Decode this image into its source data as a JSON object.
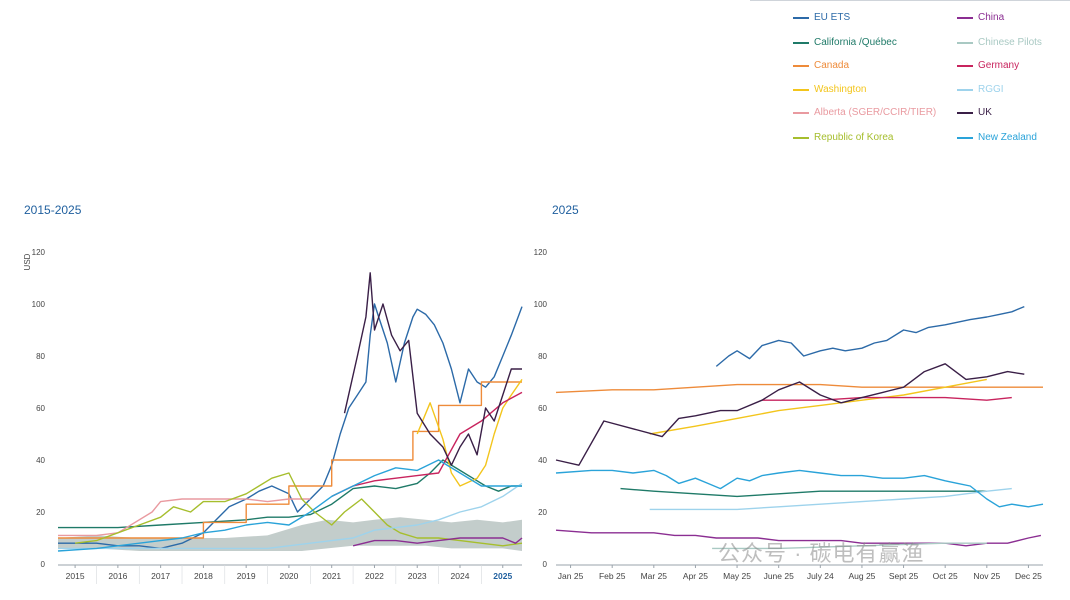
{
  "legend": [
    {
      "name": "EU ETS",
      "color": "#2c6aa8",
      "col": 0
    },
    {
      "name": "California /Québec",
      "color": "#1f7a68",
      "col": 0
    },
    {
      "name": "Canada",
      "color": "#ee8b3a",
      "col": 0
    },
    {
      "name": "Washington",
      "color": "#f3c51c",
      "col": 0
    },
    {
      "name": "Alberta (SGER/CCIR/TIER)",
      "color": "#e99aa0",
      "col": 0
    },
    {
      "name": "Republic of Korea",
      "color": "#a6be2d",
      "col": 0
    },
    {
      "name": "China",
      "color": "#8b2e92",
      "col": 1
    },
    {
      "name": "Chinese Pilots",
      "color": "#a9c9c3",
      "col": 1
    },
    {
      "name": "Germany",
      "color": "#c8245e",
      "col": 1
    },
    {
      "name": "RGGI",
      "color": "#9ed3ec",
      "col": 1
    },
    {
      "name": "UK",
      "color": "#3a1f47",
      "col": 1
    },
    {
      "name": "New Zealand",
      "color": "#2aa3d9",
      "col": 1
    }
  ],
  "watermark": "公众号 · 碳电有赢渔",
  "chart_data": [
    {
      "type": "line",
      "title": "2015-2025",
      "ylabel": "USD",
      "ylim": [
        0,
        120
      ],
      "yticks": [
        0,
        20,
        40,
        60,
        80,
        100,
        120
      ],
      "xlim": [
        2014.6,
        2025.45
      ],
      "xtick_labels": [
        "2015",
        "2016",
        "2017",
        "2018",
        "2019",
        "2020",
        "2021",
        "2022",
        "2023",
        "2024",
        "2025"
      ],
      "xtick_pos": [
        2015,
        2016,
        2017,
        2018,
        2019,
        2020,
        2021,
        2022,
        2023,
        2024,
        2025
      ],
      "highlight_tick": "2025",
      "band": {
        "name": "Chinese Pilots",
        "color": "#b8c4c2",
        "x": [
          2014.6,
          2015.5,
          2016.5,
          2017.5,
          2018.5,
          2019.5,
          2020.3,
          2020.9,
          2021.5,
          2022.0,
          2022.6,
          2023.2,
          2023.8,
          2024.4,
          2025.0,
          2025.45
        ],
        "lower": [
          6,
          6,
          5,
          5,
          5,
          5,
          5,
          6,
          7,
          7,
          7,
          7,
          6,
          6,
          6,
          5
        ],
        "upper": [
          10,
          11,
          10,
          10,
          10,
          11,
          15,
          17,
          16,
          17,
          18,
          17,
          16,
          17,
          16,
          17
        ]
      },
      "series": [
        {
          "name": "EU ETS",
          "color": "#2c6aa8",
          "x": [
            2014.6,
            2015,
            2015.5,
            2016,
            2016.5,
            2017,
            2017.5,
            2018,
            2018.3,
            2018.6,
            2019,
            2019.3,
            2019.6,
            2020,
            2020.2,
            2020.5,
            2020.8,
            2021,
            2021.2,
            2021.4,
            2021.6,
            2021.8,
            2021.9,
            2022,
            2022.1,
            2022.2,
            2022.3,
            2022.5,
            2022.7,
            2022.9,
            2023,
            2023.2,
            2023.4,
            2023.6,
            2023.8,
            2024,
            2024.2,
            2024.4,
            2024.6,
            2024.8,
            2025,
            2025.2,
            2025.45
          ],
          "y": [
            8,
            8,
            8,
            7,
            7,
            6,
            8,
            12,
            17,
            22,
            25,
            28,
            30,
            27,
            20,
            25,
            30,
            38,
            50,
            60,
            65,
            70,
            88,
            100,
            95,
            90,
            85,
            70,
            85,
            95,
            98,
            96,
            92,
            85,
            75,
            62,
            75,
            70,
            68,
            72,
            80,
            88,
            99
          ]
        },
        {
          "name": "California /Québec",
          "color": "#1f7a68",
          "x": [
            2014.6,
            2015,
            2016,
            2017,
            2018,
            2019,
            2019.5,
            2020,
            2020.5,
            2021,
            2021.5,
            2022,
            2022.5,
            2023,
            2023.3,
            2023.6,
            2024,
            2024.3,
            2024.6,
            2024.9,
            2025.2,
            2025.45
          ],
          "y": [
            14,
            14,
            14,
            15,
            16,
            17,
            18,
            18,
            19,
            23,
            29,
            30,
            29,
            31,
            35,
            40,
            36,
            33,
            30,
            28,
            30,
            30
          ]
        },
        {
          "name": "Canada",
          "color": "#ee8b3a",
          "x": [
            2014.6,
            2016,
            2017,
            2018,
            2018,
            2019,
            2019,
            2020,
            2020,
            2021,
            2021,
            2022,
            2022,
            2022.9,
            2022.9,
            2023.5,
            2023.5,
            2024.5,
            2024.5,
            2025.45
          ],
          "y": [
            10,
            10,
            10,
            10,
            16,
            16,
            23,
            23,
            30,
            30,
            40,
            40,
            40,
            40,
            51,
            51,
            61,
            61,
            70,
            70
          ]
        },
        {
          "name": "Washington",
          "color": "#f3c51c",
          "x": [
            2023,
            2023.3,
            2023.6,
            2023.8,
            2024,
            2024.4,
            2024.6,
            2024.8,
            2025,
            2025.2,
            2025.45
          ],
          "y": [
            50,
            62,
            48,
            35,
            30,
            33,
            38,
            50,
            60,
            65,
            71
          ]
        },
        {
          "name": "Alberta (SGER/CCIR/TIER)",
          "color": "#e99aa0",
          "x": [
            2014.6,
            2015.5,
            2016,
            2016.8,
            2017,
            2017.5,
            2018,
            2018.5,
            2019,
            2019.5,
            2020,
            2020.5
          ],
          "y": [
            11,
            11,
            12,
            20,
            24,
            25,
            25,
            25,
            25,
            24,
            25,
            25
          ]
        },
        {
          "name": "Republic of Korea",
          "color": "#a6be2d",
          "x": [
            2015,
            2015.5,
            2016,
            2016.5,
            2017,
            2017.3,
            2017.7,
            2018,
            2018.5,
            2019,
            2019.3,
            2019.6,
            2020,
            2020.3,
            2020.6,
            2021,
            2021.3,
            2021.7,
            2022,
            2022.3,
            2022.6,
            2023,
            2023.5,
            2024,
            2024.5,
            2025,
            2025.45
          ],
          "y": [
            8,
            9,
            12,
            15,
            18,
            22,
            20,
            24,
            24,
            27,
            30,
            33,
            35,
            25,
            20,
            15,
            20,
            25,
            20,
            15,
            12,
            10,
            10,
            9,
            8,
            7,
            8
          ]
        },
        {
          "name": "China",
          "color": "#8b2e92",
          "x": [
            2021.5,
            2022,
            2022.5,
            2023,
            2023.5,
            2024,
            2024.5,
            2025,
            2025.3,
            2025.45
          ],
          "y": [
            7,
            9,
            9,
            8,
            9,
            10,
            10,
            10,
            8,
            10
          ]
        },
        {
          "name": "Germany",
          "color": "#c8245e",
          "x": [
            2021,
            2021.5,
            2022,
            2022.5,
            2023,
            2023.5,
            2024,
            2024.5,
            2025,
            2025.45
          ],
          "y": [
            26,
            30,
            32,
            33,
            34,
            35,
            50,
            55,
            62,
            66
          ]
        },
        {
          "name": "RGGI",
          "color": "#9ed3ec",
          "x": [
            2014.6,
            2015.5,
            2016.5,
            2017.5,
            2018.5,
            2019.5,
            2020.5,
            2021,
            2021.5,
            2022,
            2022.5,
            2023,
            2023.5,
            2024,
            2024.5,
            2025,
            2025.45
          ],
          "y": [
            6,
            6,
            6,
            6,
            6,
            6,
            8,
            9,
            10,
            13,
            14,
            15,
            17,
            20,
            22,
            26,
            31
          ]
        },
        {
          "name": "UK",
          "color": "#3a1f47",
          "x": [
            2021.3,
            2021.6,
            2021.8,
            2021.9,
            2022,
            2022.2,
            2022.4,
            2022.6,
            2022.8,
            2023,
            2023.3,
            2023.6,
            2023.8,
            2024,
            2024.2,
            2024.4,
            2024.6,
            2024.8,
            2025,
            2025.2,
            2025.45
          ],
          "y": [
            58,
            80,
            95,
            112,
            90,
            100,
            88,
            82,
            86,
            58,
            50,
            45,
            38,
            45,
            50,
            42,
            60,
            55,
            65,
            75,
            75
          ]
        },
        {
          "name": "New Zealand",
          "color": "#2aa3d9",
          "x": [
            2014.6,
            2015.5,
            2016,
            2016.5,
            2017,
            2017.5,
            2018,
            2018.5,
            2019,
            2019.5,
            2020,
            2020.5,
            2021,
            2021.5,
            2022,
            2022.5,
            2023,
            2023.5,
            2024,
            2024.5,
            2025,
            2025.45
          ],
          "y": [
            5,
            6,
            7,
            8,
            9,
            10,
            12,
            13,
            15,
            16,
            15,
            20,
            26,
            30,
            34,
            37,
            36,
            40,
            35,
            30,
            30,
            30
          ]
        }
      ]
    },
    {
      "type": "line",
      "title": "2025",
      "ylim": [
        0,
        120
      ],
      "yticks": [
        0,
        20,
        40,
        60,
        80,
        100,
        120
      ],
      "xlim": [
        -0.35,
        11.35
      ],
      "xtick_labels": [
        "Jan 25",
        "Feb 25",
        "Mar 25",
        "Apr 25",
        "May 25",
        "June 25",
        "July 24",
        "Aug 25",
        "Sept 25",
        "Oct 25",
        "Nov 25",
        "Dec 25"
      ],
      "xtick_pos": [
        0,
        1,
        2,
        3,
        4,
        5,
        6,
        7,
        8,
        9,
        10,
        11
      ],
      "series": [
        {
          "name": "EU ETS",
          "color": "#2c6aa8",
          "x": [
            3.5,
            3.8,
            4,
            4.3,
            4.6,
            5,
            5.3,
            5.6,
            6,
            6.3,
            6.6,
            7,
            7.3,
            7.6,
            8,
            8.3,
            8.6,
            9,
            9.3,
            9.6,
            10,
            10.3,
            10.6,
            10.9
          ],
          "y": [
            76,
            80,
            82,
            79,
            84,
            86,
            85,
            80,
            82,
            83,
            82,
            83,
            85,
            86,
            90,
            89,
            91,
            92,
            93,
            94,
            95,
            96,
            97,
            99
          ]
        },
        {
          "name": "California /Québec",
          "color": "#1f7a68",
          "x": [
            1.2,
            2,
            3,
            4,
            5,
            6,
            7,
            8,
            9,
            10
          ],
          "y": [
            29,
            28,
            27,
            26,
            27,
            28,
            28,
            28,
            28,
            28
          ]
        },
        {
          "name": "Canada",
          "color": "#ee8b3a",
          "x": [
            -0.35,
            1,
            2,
            3,
            4,
            5,
            6,
            7,
            8,
            9,
            10,
            11,
            11.35
          ],
          "y": [
            66,
            67,
            67,
            68,
            69,
            69,
            69,
            68,
            68,
            68,
            68,
            68,
            68
          ]
        },
        {
          "name": "Washington",
          "color": "#f3c51c",
          "x": [
            1.9,
            3,
            4,
            5,
            6,
            7,
            8,
            9,
            10
          ],
          "y": [
            50,
            53,
            56,
            59,
            61,
            63,
            65,
            68,
            71
          ]
        },
        {
          "name": "China",
          "color": "#8b2e92",
          "x": [
            -0.35,
            0.5,
            1,
            1.5,
            2,
            2.5,
            3,
            3.5,
            4,
            4.5,
            5,
            5.5,
            6,
            6.5,
            7,
            7.5,
            8,
            8.5,
            9,
            9.5,
            10,
            10.5,
            11,
            11.3
          ],
          "y": [
            13,
            12,
            12,
            12,
            12,
            11,
            11,
            10,
            10,
            10,
            9,
            9,
            9,
            9,
            8,
            8,
            8,
            8,
            8,
            7,
            8,
            8,
            10,
            11
          ]
        },
        {
          "name": "Chinese Pilots",
          "color": "#a9c9c3",
          "x": [
            3.4,
            5,
            7,
            9,
            10
          ],
          "y": [
            6,
            6,
            7,
            8,
            8
          ]
        },
        {
          "name": "Germany",
          "color": "#c8245e",
          "x": [
            4.6,
            6,
            7,
            8,
            9,
            10,
            10.6
          ],
          "y": [
            63,
            63,
            64,
            64,
            64,
            63,
            64
          ]
        },
        {
          "name": "RGGI",
          "color": "#9ed3ec",
          "x": [
            1.9,
            3,
            4,
            5,
            6,
            7,
            8,
            9,
            10,
            10.6
          ],
          "y": [
            21,
            21,
            21,
            22,
            23,
            24,
            25,
            26,
            28,
            29
          ]
        },
        {
          "name": "UK",
          "color": "#3a1f47",
          "x": [
            -0.35,
            0.2,
            0.8,
            1.5,
            2.2,
            2.6,
            3,
            3.6,
            4,
            4.6,
            5,
            5.5,
            6,
            6.5,
            7,
            7.5,
            8,
            8.5,
            9,
            9.5,
            10,
            10.5,
            10.9
          ],
          "y": [
            40,
            38,
            55,
            52,
            49,
            56,
            57,
            59,
            59,
            63,
            67,
            70,
            65,
            62,
            64,
            66,
            68,
            74,
            77,
            71,
            72,
            74,
            73
          ]
        },
        {
          "name": "New Zealand",
          "color": "#2aa3d9",
          "x": [
            -0.35,
            0.5,
            1,
            1.5,
            2,
            2.3,
            2.6,
            3,
            3.3,
            3.6,
            4,
            4.3,
            4.6,
            5,
            5.5,
            6,
            6.5,
            7,
            7.5,
            8,
            8.5,
            9,
            9.3,
            9.6,
            10,
            10.3,
            10.6,
            11,
            11.35
          ],
          "y": [
            35,
            36,
            36,
            35,
            36,
            34,
            31,
            33,
            31,
            29,
            33,
            32,
            34,
            35,
            36,
            35,
            34,
            34,
            33,
            33,
            34,
            32,
            31,
            30,
            25,
            22,
            23,
            22,
            23
          ]
        }
      ]
    }
  ]
}
